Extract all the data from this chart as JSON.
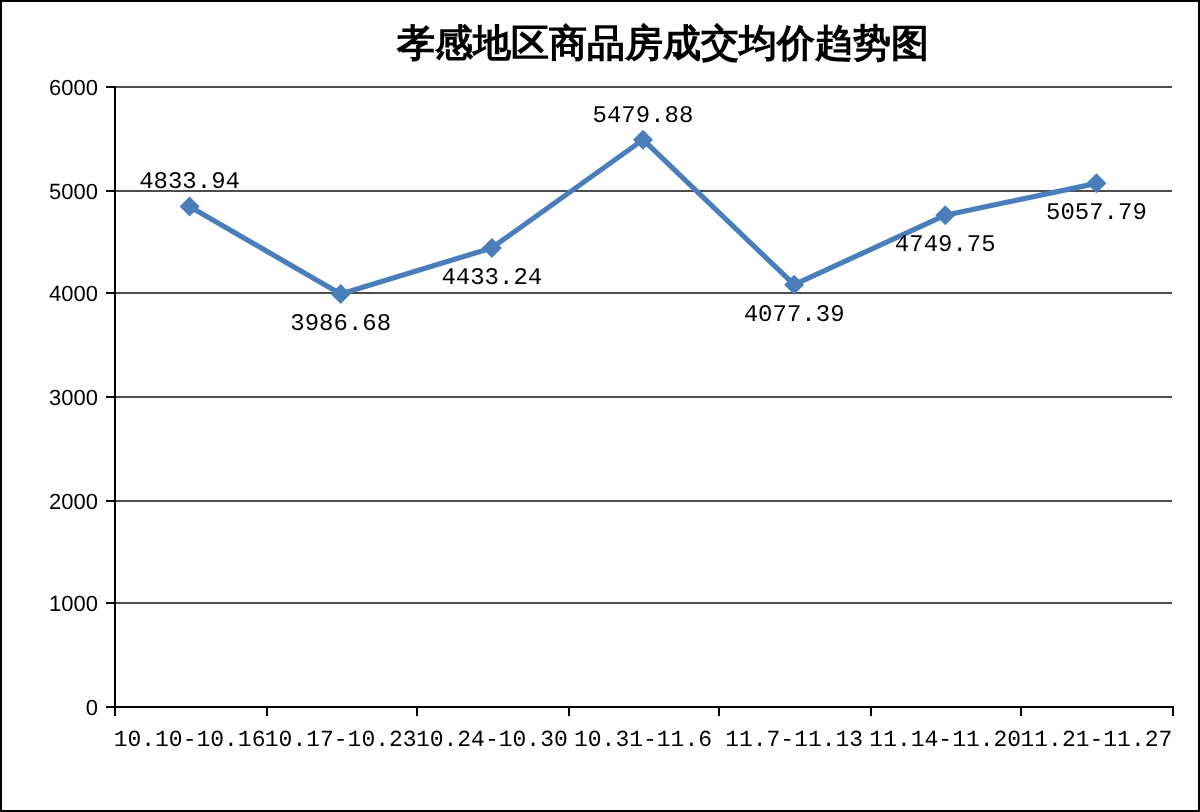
{
  "chart_data": {
    "type": "line",
    "title": "孝感地区商品房成交均价趋势图",
    "categories": [
      "10.10-10.16",
      "10.17-10.23",
      "10.24-10.30",
      "10.31-11.6",
      "11.7-11.13",
      "11.14-11.20",
      "11.21-11.27"
    ],
    "values": [
      4833.94,
      3986.68,
      4433.24,
      5479.88,
      4077.39,
      4749.75,
      5057.79
    ],
    "color": "#4a7ebb",
    "ylim": [
      0,
      6000
    ],
    "yticks": [
      0,
      1000,
      2000,
      3000,
      4000,
      5000,
      6000
    ],
    "grid": "y",
    "marker": "diamond",
    "data_labels": true
  }
}
